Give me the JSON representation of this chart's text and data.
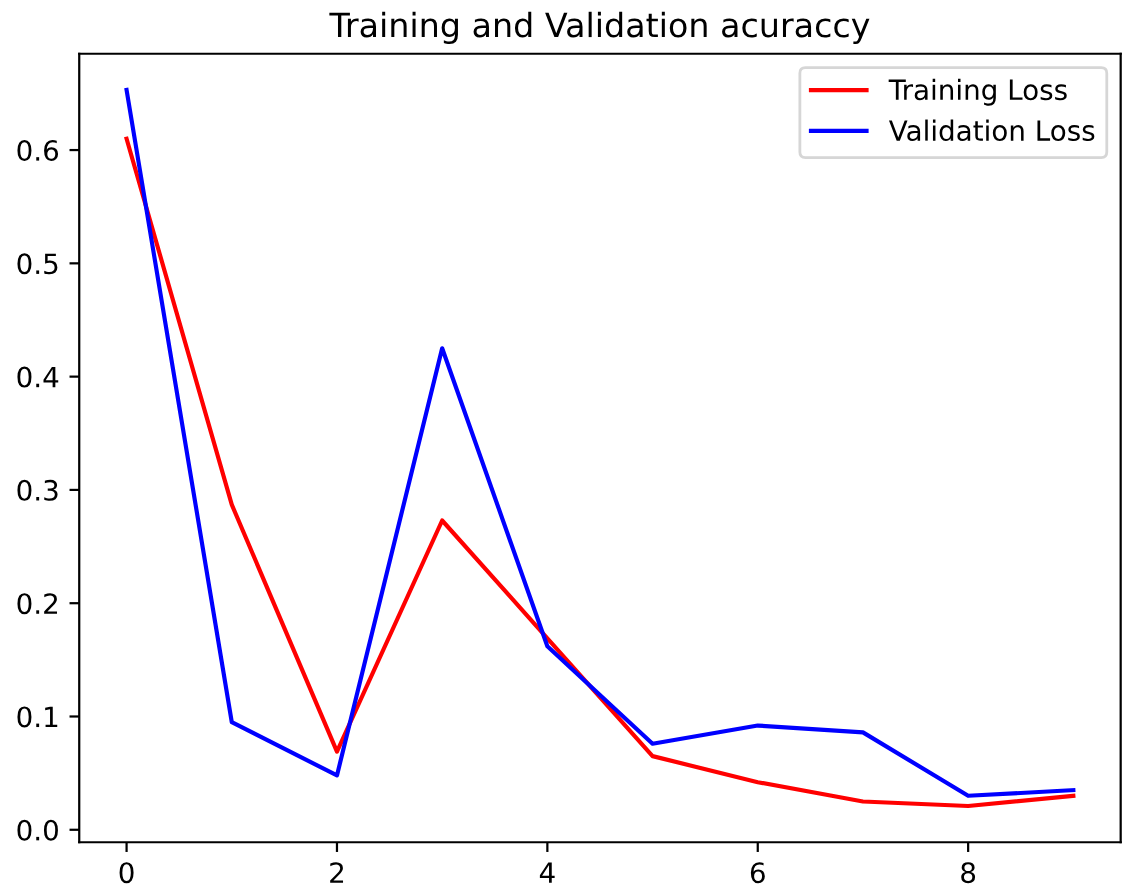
{
  "chart_data": {
    "type": "line",
    "title": "Training and Validation acuraccy",
    "x": [
      0,
      1,
      2,
      3,
      4,
      5,
      6,
      7,
      8,
      9
    ],
    "series": [
      {
        "name": "Training Loss",
        "color": "#ff0000",
        "values": [
          0.61,
          0.287,
          0.069,
          0.273,
          0.169,
          0.065,
          0.042,
          0.025,
          0.021,
          0.03
        ]
      },
      {
        "name": "Validation Loss",
        "color": "#0000ff",
        "values": [
          0.653,
          0.095,
          0.048,
          0.425,
          0.162,
          0.076,
          0.092,
          0.086,
          0.03,
          0.035
        ]
      }
    ],
    "xlim": [
      -0.45,
      9.45
    ],
    "ylim": [
      -0.011,
      0.685
    ],
    "xticks": [
      0,
      2,
      4,
      6,
      8
    ],
    "yticks": [
      {
        "value": 0,
        "label": "0.0"
      },
      0.1,
      0.2,
      0.3,
      0.4,
      0.5,
      0.6
    ],
    "legend": "top right",
    "grid": false
  }
}
